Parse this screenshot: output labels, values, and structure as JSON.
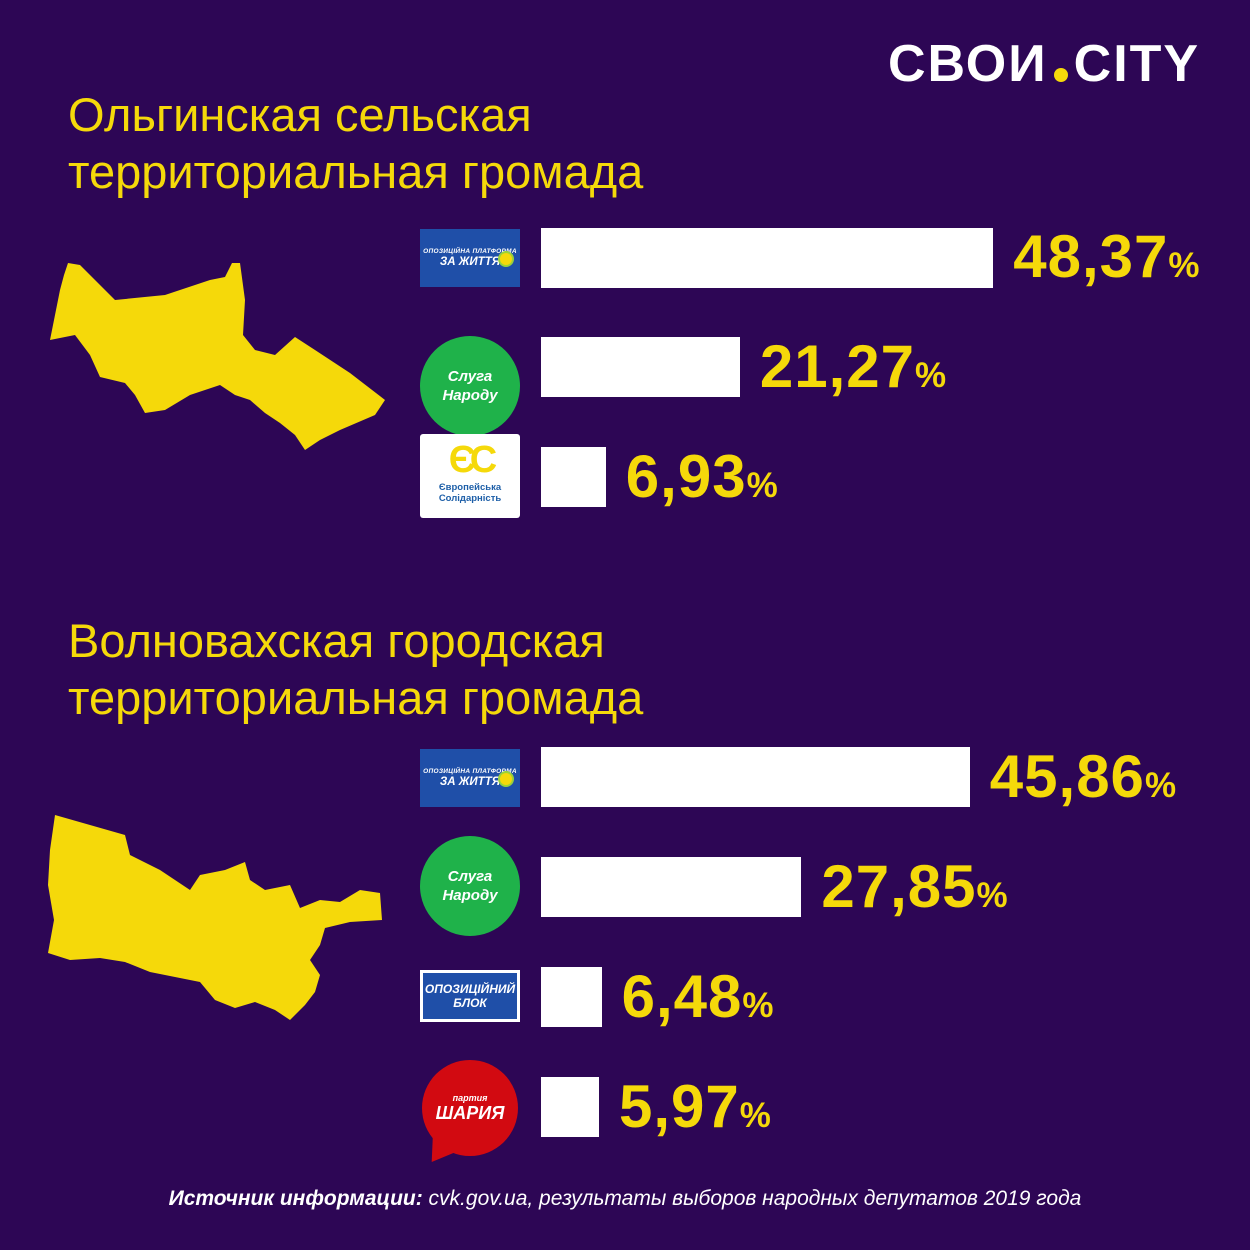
{
  "brand": {
    "left": "СВОИ",
    "right": "CITY"
  },
  "chart_data": [
    {
      "type": "bar",
      "title_lines": [
        "Ольгинская сельская",
        "территориальная громада"
      ],
      "categories": [
        "Опозиційна платформа — За життя",
        "Слуга Народу",
        "Європейська Солідарність"
      ],
      "values": [
        48.37,
        21.27,
        6.93
      ],
      "labels": [
        "48,37",
        "21,27",
        "6,93"
      ],
      "unit": "%"
    },
    {
      "type": "bar",
      "title_lines": [
        "Волновахская городская",
        "территориальная громада"
      ],
      "categories": [
        "Опозиційна платформа — За життя",
        "Слуга Народу",
        "Опозиційний блок",
        "Партия Шария"
      ],
      "values": [
        45.86,
        27.85,
        6.48,
        5.97
      ],
      "labels": [
        "45,86",
        "27,85",
        "6,48",
        "5,97"
      ],
      "unit": "%"
    }
  ],
  "logos": {
    "opzzh": {
      "small": "ОПОЗИЦІЙНА ПЛАТФОРМА",
      "big": "ЗА ЖИТТЯ"
    },
    "sluga": {
      "line1": "Слуга",
      "line2": "Народу"
    },
    "es": {
      "mark1": "Є",
      "mark2": "С",
      "line1": "Європейська",
      "line2": "Солідарність"
    },
    "opblok": {
      "line1": "ОПОЗИЦІЙНИЙ",
      "line2": "БЛОК"
    },
    "shariy": {
      "line1": "партия",
      "line2": "ШАРИЯ"
    }
  },
  "source": {
    "label": "Источник информации:",
    "text": " cvk.gov.ua, результаты выборов народных депутатов 2019 года"
  },
  "colors": {
    "background": "#2d0655",
    "accent": "#f5d90a",
    "bar": "#ffffff"
  }
}
